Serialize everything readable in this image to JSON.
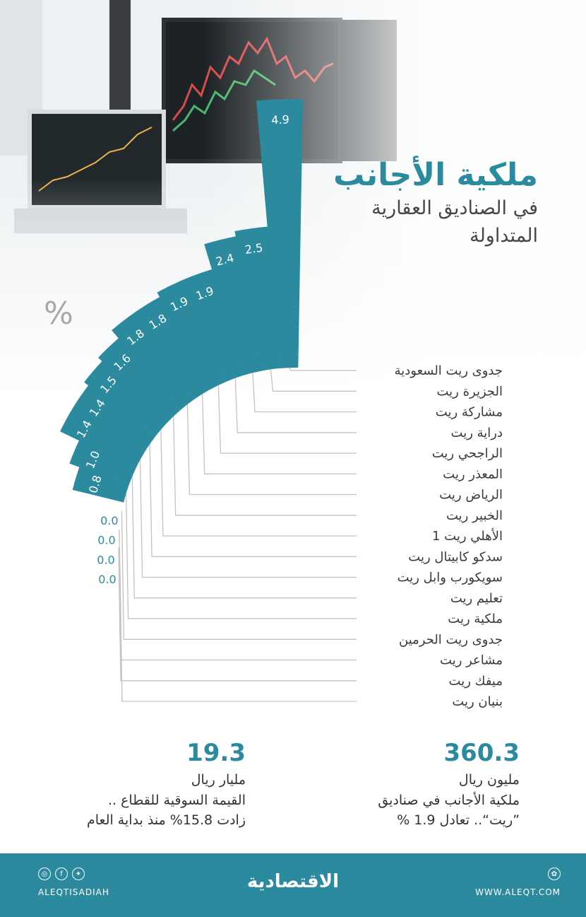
{
  "header": {
    "title": "ملكية الأجانب",
    "subtitle_line1": "في الصناديق العقارية",
    "subtitle_line2": "المتداولة"
  },
  "unit_symbol": "%",
  "chart_data": {
    "type": "bar",
    "layout_style": "radial-fan",
    "categories": [
      "جدوى ريت السعودية",
      "الجزيرة ريت",
      "مشاركة ريت",
      "دراية ريت",
      "الراجحي ريت",
      "المعذر ريت",
      "الرياض ريت",
      "الخبير ريت",
      "الأهلي ريت 1",
      "سدكو كابيتال ريت",
      "سويكورب وابل ريت",
      "تعليم ريت",
      "ملكية ريت",
      "جدوى ريت الحرمين",
      "مشاعر ريت",
      "ميفك ريت",
      "بنيان ريت"
    ],
    "values": [
      4.9,
      2.5,
      2.4,
      1.9,
      1.9,
      1.8,
      1.8,
      1.6,
      1.5,
      1.4,
      1.4,
      1.0,
      0.8,
      0.0,
      0.0,
      0.0,
      0.0
    ],
    "value_labels": [
      "4.9",
      "2.5",
      "2.4",
      "1.9",
      "1.9",
      "1.8",
      "1.8",
      "1.6",
      "1.5",
      "1.4",
      "1.4",
      "1.0",
      "0.8",
      "0.0",
      "0.0",
      "0.0",
      "0.0"
    ],
    "bar_color": "#2c8a9e",
    "leader_color": "#c2c2c2"
  },
  "stats": {
    "left": {
      "number": "19.3",
      "line1": "مليار ريال",
      "line2": "القيمة السوقية للقطاع ..",
      "line3": "زادت 15.8% منذ بداية العام"
    },
    "right": {
      "number": "360.3",
      "line1": "مليون ريال",
      "line2": "ملكية الأجانب في صناديق",
      "line3": "”ريت“.. تعادل 1.9 %"
    }
  },
  "footer": {
    "handle": "ALEQTISADIAH",
    "website": "WWW.ALEQT.COM",
    "logo": "الاقتصادية",
    "icons": [
      "instagram-icon",
      "facebook-icon",
      "twitter-icon",
      "web-icon"
    ],
    "bg_color": "#2c8a9e"
  }
}
